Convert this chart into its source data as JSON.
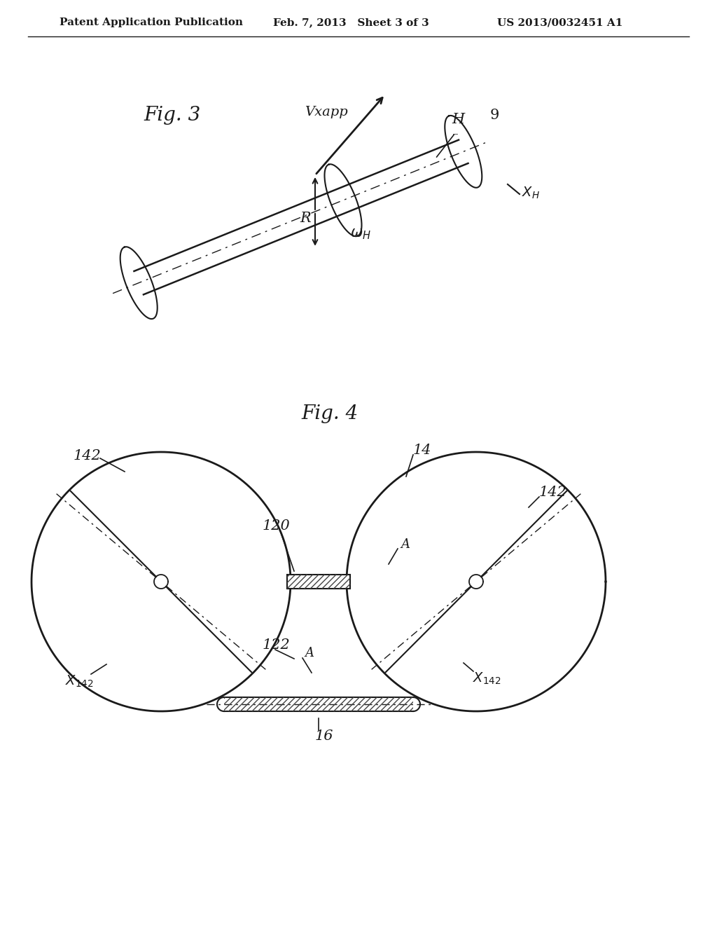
{
  "header_left": "Patent Application Publication",
  "header_center": "Feb. 7, 2013   Sheet 3 of 3",
  "header_right": "US 2013/0032451 A1",
  "fig3_label": "Fig. 3",
  "fig4_label": "Fig. 4",
  "background_color": "#ffffff",
  "line_color": "#1a1a1a",
  "hatch_color": "#555555"
}
